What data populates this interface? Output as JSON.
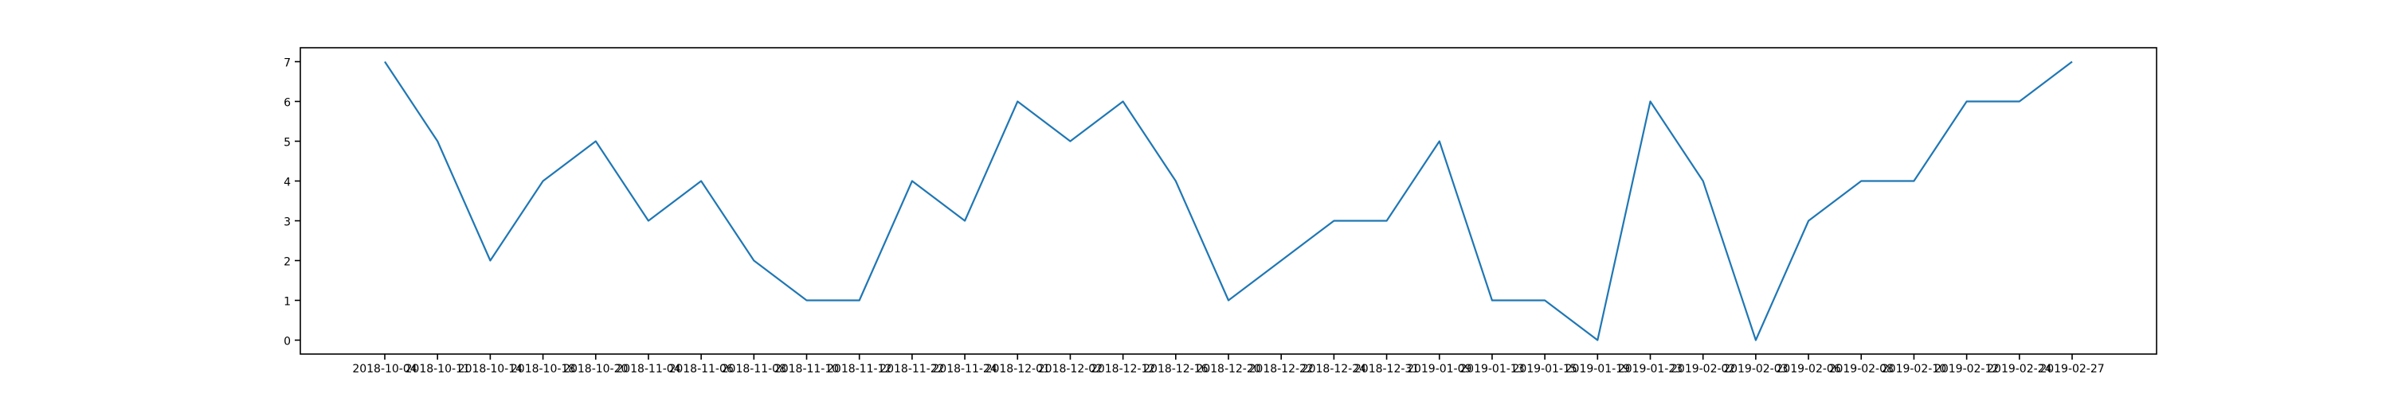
{
  "chart_data": {
    "type": "line",
    "title": "",
    "xlabel": "",
    "ylabel": "",
    "ylim": [
      -0.35,
      7.35
    ],
    "y_ticks": [
      0,
      1,
      2,
      3,
      4,
      5,
      6,
      7
    ],
    "grid": false,
    "legend": "none",
    "x": [
      "2018-10-04",
      "2018-10-11",
      "2018-10-14",
      "2018-10-18",
      "2018-10-20",
      "2018-11-04",
      "2018-11-06",
      "2018-11-08",
      "2018-11-10",
      "2018-11-12",
      "2018-11-22",
      "2018-11-24",
      "2018-12-01",
      "2018-12-02",
      "2018-12-12",
      "2018-12-16",
      "2018-12-20",
      "2018-12-22",
      "2018-12-24",
      "2018-12-31",
      "2019-01-09",
      "2019-01-13",
      "2019-01-15",
      "2019-01-19",
      "2019-01-23",
      "2019-02-02",
      "2019-02-03",
      "2019-02-06",
      "2019-02-08",
      "2019-02-10",
      "2019-02-12",
      "2019-02-24",
      "2019-02-27"
    ],
    "series": [
      {
        "color": "#1f77b4",
        "values": [
          7,
          5,
          2,
          4,
          5,
          3,
          4,
          2,
          1,
          1,
          4,
          3,
          6,
          5,
          6,
          4,
          1,
          2,
          3,
          3,
          5,
          1,
          1,
          0,
          6,
          4,
          0,
          3,
          4,
          4,
          6,
          6,
          7
        ]
      }
    ]
  }
}
